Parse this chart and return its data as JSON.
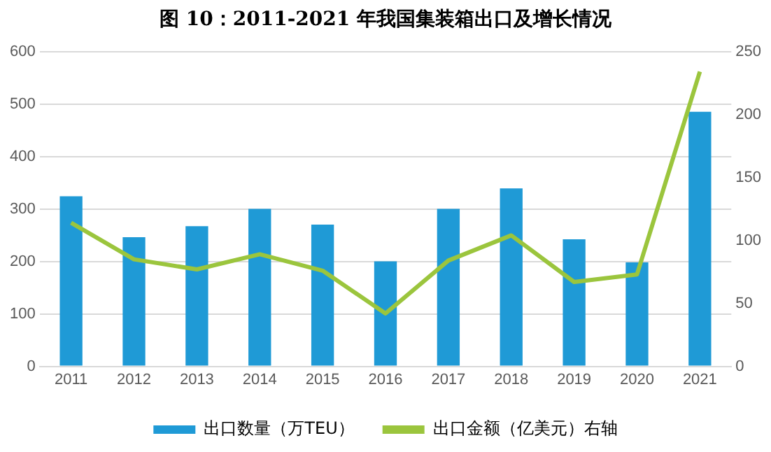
{
  "chart_data": {
    "type": "bar",
    "title": "图 10：2011-2021 年我国集装箱出口及增长情况",
    "categories": [
      "2011",
      "2012",
      "2013",
      "2014",
      "2015",
      "2016",
      "2017",
      "2018",
      "2019",
      "2020",
      "2021"
    ],
    "series": [
      {
        "name": "出口数量（万TEU）",
        "color": "#1f9ad6",
        "values": [
          324,
          246,
          267,
          300,
          270,
          200,
          300,
          339,
          242,
          198,
          485
        ]
      },
      {
        "name": "出口金额（亿美元）右轴",
        "type": "line",
        "axis": "y2",
        "color": "#9bc53d",
        "values": [
          114,
          85,
          77,
          89,
          76,
          42,
          84,
          104,
          67,
          73,
          234
        ]
      }
    ],
    "ylim": [
      0,
      600
    ],
    "yticks": [
      0,
      100,
      200,
      300,
      400,
      500,
      600
    ],
    "y2lim": [
      0,
      250
    ],
    "y2ticks": [
      0,
      50,
      100,
      150,
      200,
      250
    ],
    "grid": "y",
    "legend": "bottom",
    "marker": "none",
    "line_style": "solid"
  }
}
